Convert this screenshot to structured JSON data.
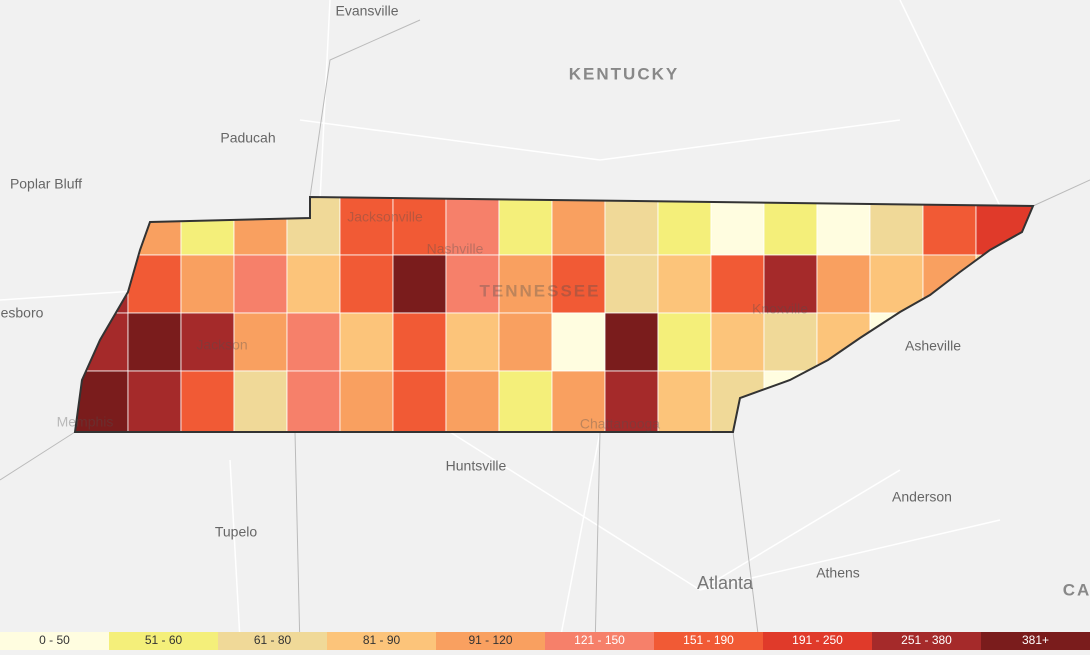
{
  "map": {
    "labels": [
      "Evansville",
      "KENTUCKY",
      "Paducah",
      "Poplar Bluff",
      "esboro",
      "Jacksonville",
      "Nashville",
      "TENNESSEE",
      "Jackson",
      "Memphis",
      "Chattanooga",
      "Knoxville",
      "Asheville",
      "Huntsville",
      "Tupelo",
      "Anderson",
      "Atlanta",
      "Athens",
      "CA"
    ],
    "legend": [
      {
        "label": "0 - 50",
        "color": "#fffde0"
      },
      {
        "label": "51 - 60",
        "color": "#f4ef7a"
      },
      {
        "label": "61 - 80",
        "color": "#f0d998"
      },
      {
        "label": "81 - 90",
        "color": "#fcc47a"
      },
      {
        "label": "91 - 120",
        "color": "#f9a060"
      },
      {
        "label": "121 - 150",
        "color": "#f6806a"
      },
      {
        "label": "151 - 190",
        "color": "#f15a35"
      },
      {
        "label": "191 - 250",
        "color": "#e03a2a"
      },
      {
        "label": "251 - 380",
        "color": "#a52a2a"
      },
      {
        "label": "381+",
        "color": "#7a1c1c"
      }
    ]
  }
}
